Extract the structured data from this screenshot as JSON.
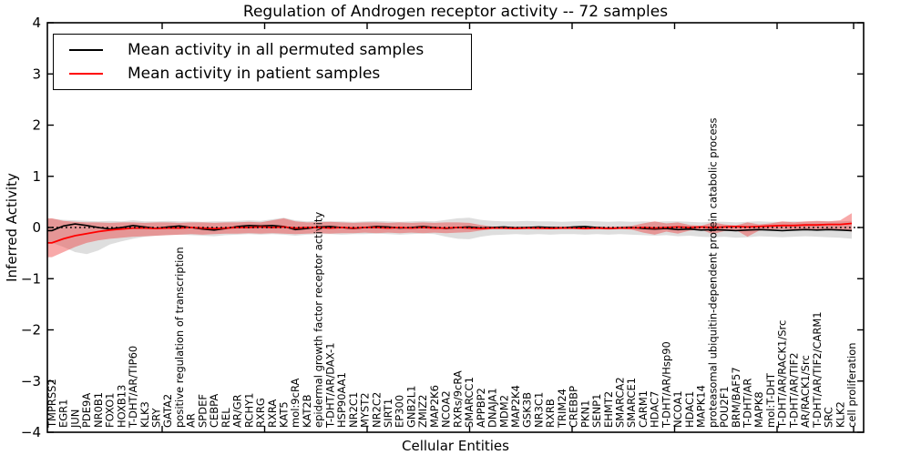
{
  "chart_data": {
    "type": "line",
    "title": "Regulation of Androgen receptor activity -- 72 samples",
    "xlabel": "Cellular Entities",
    "ylabel": "Inferred Activity",
    "ylim": [
      -4,
      4
    ],
    "ytick_values": [
      4,
      3,
      2,
      1,
      0,
      -1,
      -2,
      -3,
      -4
    ],
    "grid": false,
    "legend": {
      "position": "upper left",
      "entries": [
        {
          "label": "Mean activity in all permuted samples",
          "color": "#000000"
        },
        {
          "label": "Mean activity in patient samples",
          "color": "#ff0000"
        }
      ]
    },
    "categories": [
      "TMPRSS2",
      "EGR1",
      "JUN",
      "PDE9A",
      "NR0B1",
      "FOXO1",
      "HOXB13",
      "T-DHT/AR/TIP60",
      "KLK3",
      "SRY",
      "GATA2",
      "positive regulation of transcription",
      "AR",
      "SPDEF",
      "CEBPA",
      "REL",
      "AR/GR",
      "RCHY1",
      "RXRG",
      "RXRA",
      "KAT5",
      "mol:9cRA",
      "KAT2B",
      "epidermal growth factor receptor activity",
      "T-DHT/AR/DAX-1",
      "HSP90AA1",
      "NR2C1",
      "MYST2",
      "NR2C2",
      "SIRT1",
      "EP300",
      "GNB2L1",
      "ZMIZ2",
      "MAP2K6",
      "NCOA2",
      "RXRs/9cRA",
      "SMARCC1",
      "APPBP2",
      "DNAJA1",
      "MDM2",
      "MAP2K4",
      "GSK3B",
      "NR3C1",
      "RXRB",
      "TRIM24",
      "CREBBP",
      "PKN1",
      "SENP1",
      "EHMT2",
      "SMARCA2",
      "SMARCE1",
      "CARM1",
      "HDAC7",
      "T-DHT/AR/Hsp90",
      "NCOA1",
      "HDAC1",
      "MAPK14",
      "proteasomal ubiquitin-dependent protein catabolic process",
      "POU2F1",
      "BRM/BAF57",
      "T-DHT/AR",
      "MAPK8",
      "mol:T-DHT",
      "T-DHT/AR/RACK1/Src",
      "T-DHT/AR/TIF2",
      "AR/RACK1/Src",
      "T-DHT/AR/TIF2/CARM1",
      "SRC",
      "KLK2",
      "cell proliferation"
    ],
    "series": [
      {
        "name": "permuted-band",
        "kind": "band",
        "color": "#999999",
        "opacity": 0.32,
        "upper": [
          0.17,
          0.15,
          0.14,
          0.13,
          0.12,
          0.13,
          0.12,
          0.14,
          0.12,
          0.12,
          0.13,
          0.12,
          0.12,
          0.11,
          0.12,
          0.12,
          0.13,
          0.14,
          0.13,
          0.16,
          0.19,
          0.14,
          0.12,
          0.13,
          0.12,
          0.12,
          0.11,
          0.12,
          0.13,
          0.12,
          0.11,
          0.12,
          0.13,
          0.12,
          0.15,
          0.18,
          0.19,
          0.15,
          0.13,
          0.12,
          0.12,
          0.13,
          0.12,
          0.12,
          0.11,
          0.12,
          0.13,
          0.12,
          0.11,
          0.12,
          0.11,
          0.12,
          0.11,
          0.12,
          0.12,
          0.11,
          0.1,
          0.11,
          0.11,
          0.1,
          0.11,
          0.12,
          0.11,
          0.11,
          0.12,
          0.11,
          0.12,
          0.12,
          0.12,
          0.13
        ],
        "lower": [
          -0.3,
          -0.38,
          -0.48,
          -0.52,
          -0.45,
          -0.33,
          -0.27,
          -0.22,
          -0.18,
          -0.16,
          -0.15,
          -0.14,
          -0.15,
          -0.16,
          -0.17,
          -0.15,
          -0.14,
          -0.13,
          -0.14,
          -0.13,
          -0.14,
          -0.16,
          -0.14,
          -0.13,
          -0.13,
          -0.14,
          -0.13,
          -0.13,
          -0.12,
          -0.13,
          -0.14,
          -0.13,
          -0.12,
          -0.13,
          -0.18,
          -0.22,
          -0.23,
          -0.18,
          -0.15,
          -0.14,
          -0.13,
          -0.14,
          -0.13,
          -0.14,
          -0.13,
          -0.13,
          -0.14,
          -0.13,
          -0.14,
          -0.13,
          -0.14,
          -0.15,
          -0.16,
          -0.15,
          -0.17,
          -0.16,
          -0.18,
          -0.19,
          -0.18,
          -0.2,
          -0.19,
          -0.17,
          -0.18,
          -0.19,
          -0.18,
          -0.17,
          -0.18,
          -0.19,
          -0.2,
          -0.22
        ]
      },
      {
        "name": "patient-band",
        "kind": "band",
        "color": "#ee3333",
        "opacity": 0.42,
        "upper": [
          0.18,
          0.13,
          0.11,
          0.1,
          0.1,
          0.09,
          0.1,
          0.1,
          0.09,
          0.1,
          0.1,
          0.09,
          0.1,
          0.1,
          0.09,
          0.1,
          0.1,
          0.11,
          0.1,
          0.14,
          0.18,
          0.12,
          0.1,
          0.1,
          0.11,
          0.1,
          0.09,
          0.1,
          0.1,
          0.09,
          0.1,
          0.09,
          0.1,
          0.09,
          0.1,
          0.1,
          0.09,
          0.05,
          0.02,
          0.02,
          0.02,
          0.02,
          0.02,
          0.02,
          0.02,
          0.02,
          0.02,
          0.02,
          0.02,
          0.02,
          0.03,
          0.08,
          0.12,
          0.08,
          0.1,
          0.05,
          0.03,
          0.1,
          0.06,
          0.04,
          0.1,
          0.06,
          0.08,
          0.12,
          0.1,
          0.12,
          0.13,
          0.12,
          0.14,
          0.28
        ],
        "lower": [
          -0.58,
          -0.48,
          -0.38,
          -0.3,
          -0.25,
          -0.22,
          -0.2,
          -0.18,
          -0.17,
          -0.16,
          -0.15,
          -0.14,
          -0.13,
          -0.14,
          -0.13,
          -0.12,
          -0.12,
          -0.11,
          -0.12,
          -0.11,
          -0.12,
          -0.13,
          -0.12,
          -0.11,
          -0.12,
          -0.11,
          -0.11,
          -0.1,
          -0.11,
          -0.1,
          -0.11,
          -0.1,
          -0.11,
          -0.1,
          -0.11,
          -0.1,
          -0.09,
          -0.06,
          -0.03,
          -0.03,
          -0.03,
          -0.03,
          -0.04,
          -0.03,
          -0.03,
          -0.03,
          -0.04,
          -0.03,
          -0.04,
          -0.03,
          -0.04,
          -0.1,
          -0.14,
          -0.08,
          -0.12,
          -0.06,
          -0.04,
          -0.13,
          -0.07,
          -0.05,
          -0.18,
          -0.06,
          -0.04,
          -0.03,
          -0.04,
          -0.03,
          -0.04,
          -0.03,
          -0.04,
          -0.08
        ]
      },
      {
        "name": "Mean activity in all permuted samples",
        "kind": "mean-line",
        "color": "#000000",
        "width": 1.6,
        "values": [
          -0.06,
          0.03,
          0.07,
          0.04,
          0.0,
          -0.03,
          0.0,
          0.04,
          0.01,
          -0.02,
          0.01,
          0.03,
          0.0,
          -0.03,
          -0.05,
          -0.02,
          0.02,
          0.04,
          0.03,
          0.04,
          0.02,
          -0.04,
          -0.02,
          0.01,
          0.02,
          0.0,
          -0.02,
          0.0,
          0.02,
          0.01,
          -0.01,
          0.0,
          0.02,
          0.0,
          -0.02,
          0.0,
          0.01,
          -0.01,
          0.0,
          0.01,
          -0.01,
          0.0,
          0.01,
          0.0,
          -0.01,
          0.01,
          0.02,
          0.0,
          -0.02,
          -0.01,
          0.0,
          -0.02,
          -0.03,
          -0.02,
          -0.04,
          -0.03,
          -0.05,
          -0.04,
          -0.05,
          -0.06,
          -0.05,
          -0.04,
          -0.05,
          -0.06,
          -0.05,
          -0.04,
          -0.05,
          -0.04,
          -0.05,
          -0.06
        ]
      },
      {
        "name": "Mean activity in patient samples",
        "kind": "mean-line",
        "color": "#ff0000",
        "width": 1.8,
        "values": [
          -0.3,
          -0.22,
          -0.16,
          -0.12,
          -0.08,
          -0.05,
          -0.03,
          -0.01,
          -0.01,
          -0.02,
          -0.01,
          -0.01,
          0.0,
          -0.01,
          -0.02,
          -0.01,
          0.0,
          0.0,
          0.01,
          0.0,
          0.01,
          -0.01,
          0.0,
          0.0,
          -0.01,
          0.0,
          -0.01,
          0.0,
          0.0,
          -0.01,
          0.0,
          -0.01,
          0.0,
          -0.01,
          -0.01,
          0.0,
          -0.01,
          -0.02,
          -0.01,
          -0.01,
          -0.02,
          -0.01,
          -0.01,
          -0.02,
          -0.01,
          -0.01,
          -0.02,
          -0.01,
          -0.02,
          -0.01,
          -0.01,
          0.0,
          -0.01,
          0.0,
          0.01,
          0.0,
          0.01,
          0.0,
          0.01,
          0.02,
          0.01,
          0.02,
          0.03,
          0.04,
          0.04,
          0.05,
          0.05,
          0.06,
          0.06,
          0.08
        ]
      },
      {
        "name": "zero-reference",
        "kind": "hline",
        "y": 0,
        "color": "#000000",
        "linestyle": "dotted"
      }
    ]
  }
}
